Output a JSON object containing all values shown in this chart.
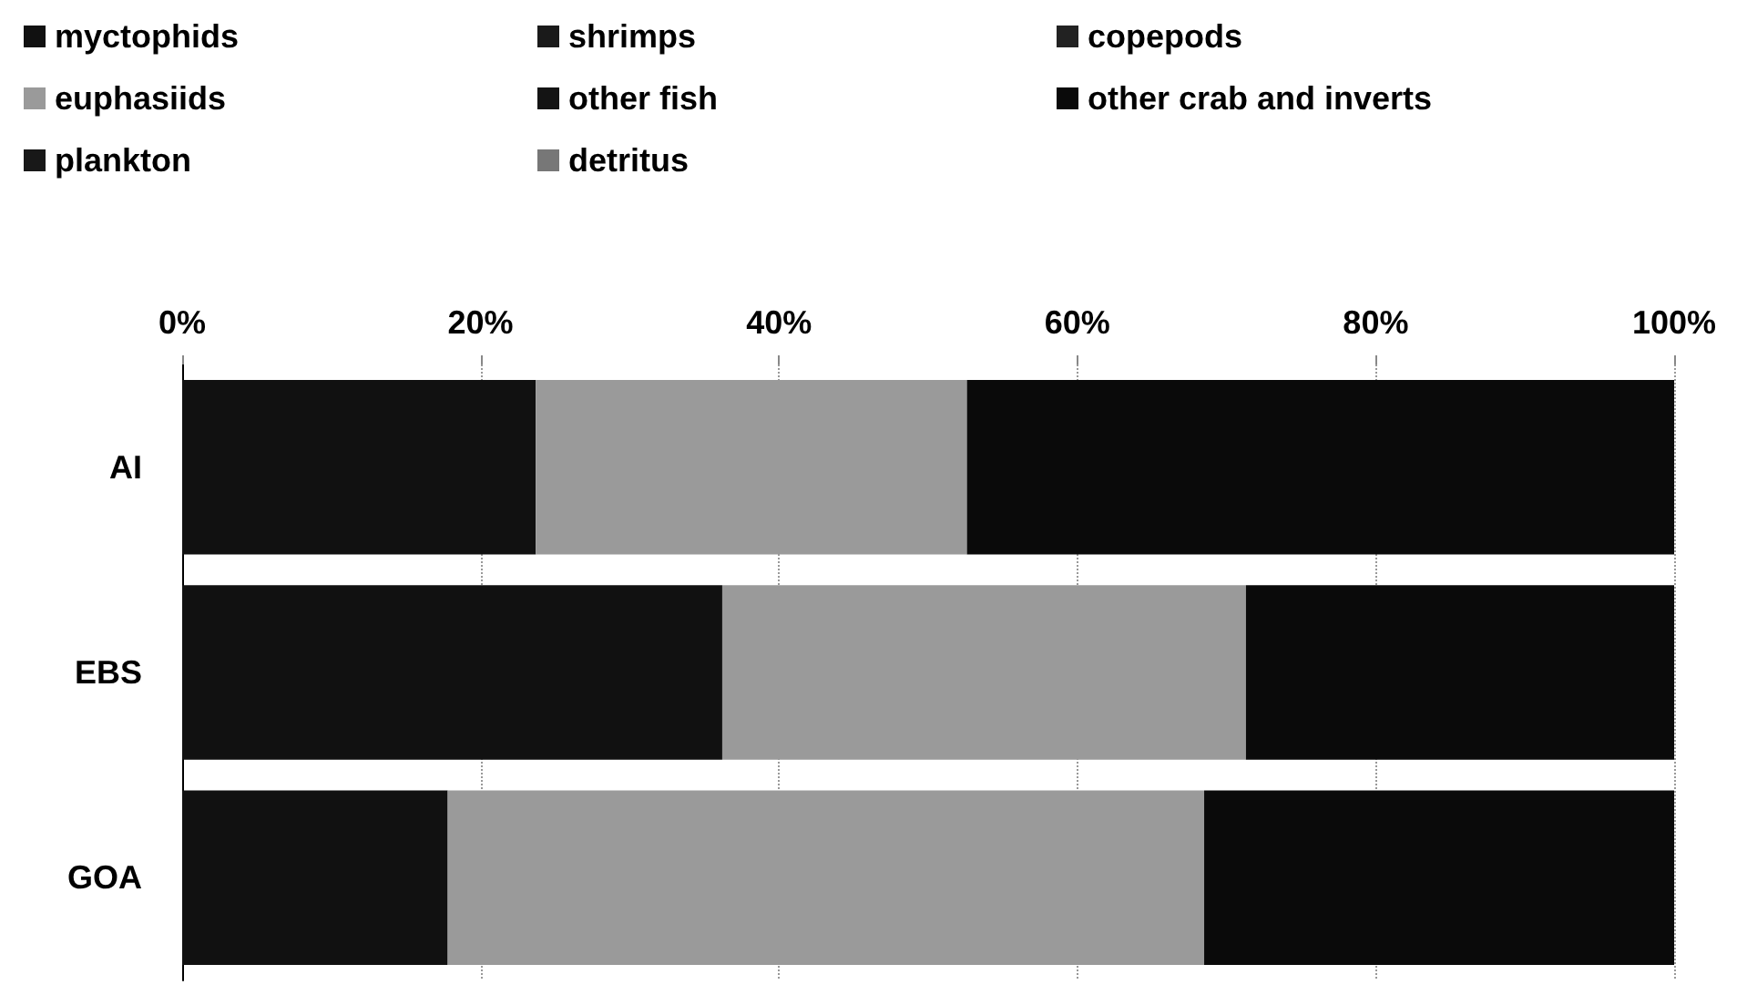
{
  "chart_data": {
    "type": "bar",
    "orientation": "horizontal",
    "stacked": true,
    "categories": [
      "AI",
      "EBS",
      "GOA"
    ],
    "series": [
      {
        "name": "myctophids",
        "color": "#111111",
        "values": [
          23.7,
          36.2,
          17.8
        ]
      },
      {
        "name": "shrimps",
        "color": "#1a1a1a",
        "values": [
          0,
          0,
          0
        ]
      },
      {
        "name": "copepods",
        "color": "#222222",
        "values": [
          0,
          0,
          0
        ]
      },
      {
        "name": "euphasiids",
        "color": "#9a9a9a",
        "values": [
          28.9,
          35.1,
          50.7
        ]
      },
      {
        "name": "other fish",
        "color": "#141414",
        "values": [
          0,
          0,
          0
        ]
      },
      {
        "name": "other crab and inverts",
        "color": "#0a0a0a",
        "values": [
          47.4,
          28.7,
          31.5
        ]
      },
      {
        "name": "plankton",
        "color": "#181818",
        "values": [
          0,
          0,
          0
        ]
      },
      {
        "name": "detritus",
        "color": "#777777",
        "values": [
          0,
          0,
          0
        ]
      }
    ],
    "xlim": [
      0,
      100
    ],
    "xticks": [
      {
        "value": 0,
        "label": "0%"
      },
      {
        "value": 20,
        "label": "20%"
      },
      {
        "value": 40,
        "label": "40%"
      },
      {
        "value": 60,
        "label": "60%"
      },
      {
        "value": 80,
        "label": "80%"
      },
      {
        "value": 100,
        "label": "100%"
      }
    ],
    "grid": "x",
    "legend": "top"
  }
}
